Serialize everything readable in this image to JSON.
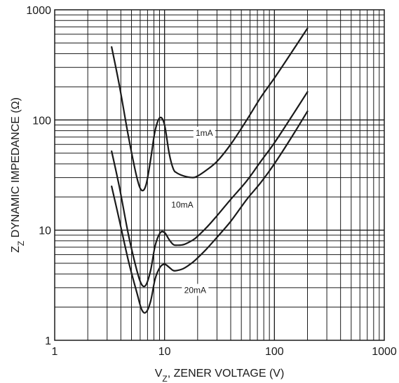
{
  "chart_data": {
    "type": "line",
    "title": "",
    "xlabel": {
      "main": "V",
      "sub": "Z",
      "rest": ", ZENER VOLTAGE (V)"
    },
    "ylabel": {
      "main": "Z",
      "sub": "Z",
      "rest": " DYNAMIC IMPEDANCE (Ω)"
    },
    "x_scale": "log",
    "y_scale": "log",
    "xlim": [
      1,
      1000
    ],
    "ylim": [
      1,
      1000
    ],
    "grid": true,
    "x_ticks": [
      "1",
      "10",
      "100",
      "1000"
    ],
    "y_ticks": [
      "1",
      "10",
      "100",
      "1000"
    ],
    "series": [
      {
        "name": "1mA",
        "x": [
          3.3,
          3.9,
          4.7,
          5.6,
          6.2,
          6.8,
          7.5,
          8.2,
          9.1,
          10,
          11,
          12,
          13,
          15,
          18,
          20,
          24,
          30,
          40,
          56,
          75,
          100,
          150,
          200
        ],
        "y": [
          460,
          200,
          70,
          30,
          23,
          26,
          45,
          80,
          105,
          90,
          50,
          36,
          33,
          31,
          30,
          31,
          35,
          42,
          60,
          100,
          160,
          240,
          440,
          680
        ]
      },
      {
        "name": "10mA",
        "x": [
          3.3,
          3.9,
          4.7,
          5.6,
          6.2,
          6.8,
          7.5,
          8.2,
          9.1,
          10,
          11,
          12,
          13,
          15,
          18,
          20,
          24,
          30,
          40,
          56,
          75,
          100,
          150,
          200
        ],
        "y": [
          52,
          24,
          9,
          4.3,
          3.2,
          3.2,
          4.4,
          7.2,
          9.4,
          9.5,
          8.2,
          7.4,
          7.3,
          7.4,
          8.1,
          8.8,
          10.5,
          13.5,
          19,
          28,
          42,
          62,
          115,
          180
        ]
      },
      {
        "name": "20mA",
        "x": [
          3.3,
          3.9,
          4.7,
          5.6,
          6.2,
          6.8,
          7.5,
          8.2,
          9.1,
          10,
          11,
          12,
          13,
          15,
          18,
          20,
          24,
          30,
          40,
          56,
          75,
          100,
          150,
          200
        ],
        "y": [
          25,
          12,
          5.2,
          2.7,
          1.9,
          1.8,
          2.3,
          3.6,
          4.6,
          4.9,
          4.6,
          4.3,
          4.3,
          4.5,
          5.1,
          5.6,
          6.7,
          8.6,
          12,
          19,
          27,
          40,
          75,
          120
        ]
      }
    ],
    "curve_labels": [
      {
        "text": "1mA",
        "x": 23,
        "y": 76
      },
      {
        "text": "10mA",
        "x": 14.5,
        "y": 17
      },
      {
        "text": "20mA",
        "x": 19,
        "y": 2.85
      }
    ]
  }
}
